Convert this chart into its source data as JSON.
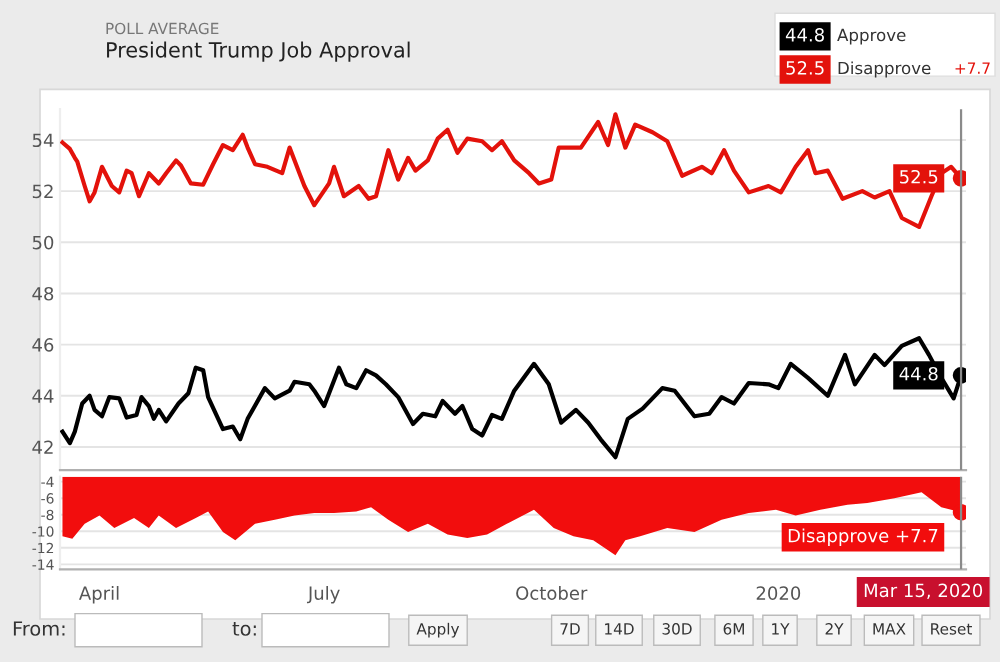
{
  "chart_data": [
    {
      "type": "line",
      "subtitle": "POLL AVERAGE",
      "title": "President Trump Job Approval",
      "legend": "top right",
      "grid": "y",
      "tick_labels": "y",
      "xlim": [
        "2019-03-16",
        "2020-03-17"
      ],
      "ylim": [
        41.1,
        55.2
      ],
      "yticks": [
        42,
        44,
        46,
        48,
        50,
        52,
        54
      ],
      "series": [
        {
          "name": "Approve",
          "color": "#000000",
          "x": [
            "2019-03-17",
            "2019-03-20",
            "2019-03-22",
            "2019-03-25",
            "2019-03-28",
            "2019-03-30",
            "2019-04-02",
            "2019-04-05",
            "2019-04-09",
            "2019-04-12",
            "2019-04-16",
            "2019-04-18",
            "2019-04-21",
            "2019-04-23",
            "2019-04-25",
            "2019-04-28",
            "2019-05-03",
            "2019-05-07",
            "2019-05-10",
            "2019-05-13",
            "2019-05-15",
            "2019-05-21",
            "2019-05-25",
            "2019-05-28",
            "2019-05-31",
            "2019-06-07",
            "2019-06-11",
            "2019-06-17",
            "2019-06-19",
            "2019-06-25",
            "2019-06-27",
            "2019-07-01",
            "2019-07-07",
            "2019-07-10",
            "2019-07-14",
            "2019-07-18",
            "2019-07-22",
            "2019-07-26",
            "2019-07-31",
            "2019-08-06",
            "2019-08-10",
            "2019-08-15",
            "2019-08-18",
            "2019-08-23",
            "2019-08-26",
            "2019-08-30",
            "2019-09-03",
            "2019-09-07",
            "2019-09-11",
            "2019-09-16",
            "2019-09-24",
            "2019-09-30",
            "2019-10-05",
            "2019-10-11",
            "2019-10-16",
            "2019-10-21",
            "2019-10-27",
            "2019-11-01",
            "2019-11-07",
            "2019-11-15",
            "2019-11-20",
            "2019-11-28",
            "2019-12-04",
            "2019-12-09",
            "2019-12-14",
            "2019-12-20",
            "2019-12-28",
            "2020-01-01",
            "2020-01-06",
            "2020-01-13",
            "2020-01-21",
            "2020-01-28",
            "2020-02-01",
            "2020-02-09",
            "2020-02-13",
            "2020-02-20",
            "2020-02-27",
            "2020-03-02",
            "2020-03-07",
            "2020-03-12",
            "2020-03-15"
          ],
          "values": [
            42.6,
            42.15,
            42.6,
            43.7,
            44.0,
            43.45,
            43.2,
            43.95,
            43.9,
            43.15,
            43.25,
            43.95,
            43.6,
            43.1,
            43.45,
            43.0,
            43.7,
            44.1,
            45.1,
            45.0,
            43.95,
            42.7,
            42.8,
            42.3,
            43.1,
            44.3,
            43.9,
            44.2,
            44.55,
            44.45,
            44.2,
            43.6,
            45.1,
            44.45,
            44.3,
            45.0,
            44.8,
            44.45,
            43.95,
            42.9,
            43.3,
            43.2,
            43.8,
            43.3,
            43.6,
            42.7,
            42.45,
            43.25,
            43.1,
            44.2,
            45.25,
            44.45,
            42.95,
            43.45,
            42.95,
            42.3,
            41.6,
            43.1,
            43.5,
            44.3,
            44.2,
            43.2,
            43.3,
            43.95,
            43.7,
            44.5,
            44.45,
            44.3,
            45.25,
            44.7,
            44.0,
            45.6,
            44.45,
            45.6,
            45.2,
            45.95,
            46.25,
            45.6,
            44.7,
            43.9,
            44.8
          ]
        },
        {
          "name": "Disapprove",
          "color": "#e3120b",
          "x": [
            "2019-03-17",
            "2019-03-20",
            "2019-03-22",
            "2019-03-23",
            "2019-03-26",
            "2019-03-28",
            "2019-03-30",
            "2019-04-02",
            "2019-04-06",
            "2019-04-09",
            "2019-04-12",
            "2019-04-14",
            "2019-04-17",
            "2019-04-21",
            "2019-04-25",
            "2019-04-28",
            "2019-05-02",
            "2019-05-04",
            "2019-05-08",
            "2019-05-13",
            "2019-05-17",
            "2019-05-21",
            "2019-05-25",
            "2019-05-29",
            "2019-05-31",
            "2019-06-03",
            "2019-06-08",
            "2019-06-14",
            "2019-06-17",
            "2019-06-21",
            "2019-06-23",
            "2019-06-27",
            "2019-07-03",
            "2019-07-05",
            "2019-07-09",
            "2019-07-15",
            "2019-07-19",
            "2019-07-22",
            "2019-07-27",
            "2019-07-31",
            "2019-08-04",
            "2019-08-07",
            "2019-08-12",
            "2019-08-16",
            "2019-08-20",
            "2019-08-24",
            "2019-08-28",
            "2019-09-03",
            "2019-09-07",
            "2019-09-11",
            "2019-09-16",
            "2019-09-22",
            "2019-09-26",
            "2019-10-01",
            "2019-10-04",
            "2019-10-13",
            "2019-10-20",
            "2019-10-24",
            "2019-10-27",
            "2019-10-31",
            "2019-11-04",
            "2019-11-11",
            "2019-11-17",
            "2019-11-23",
            "2019-12-01",
            "2019-12-05",
            "2019-12-10",
            "2019-12-14",
            "2019-12-20",
            "2019-12-28",
            "2020-01-02",
            "2020-01-08",
            "2020-01-13",
            "2020-01-16",
            "2020-01-21",
            "2020-01-27",
            "2020-02-04",
            "2020-02-09",
            "2020-02-15",
            "2020-02-20",
            "2020-02-27",
            "2020-03-03",
            "2020-03-07",
            "2020-03-11",
            "2020-03-15"
          ],
          "values": [
            53.9,
            53.65,
            53.3,
            53.15,
            52.2,
            51.6,
            51.95,
            52.95,
            52.2,
            51.95,
            52.8,
            52.7,
            51.8,
            52.7,
            52.3,
            52.7,
            53.2,
            53.0,
            52.3,
            52.25,
            53.05,
            53.8,
            53.6,
            54.2,
            53.7,
            53.05,
            52.95,
            52.7,
            53.7,
            52.7,
            52.2,
            51.45,
            52.3,
            52.95,
            51.8,
            52.2,
            51.7,
            51.8,
            53.6,
            52.45,
            53.3,
            52.8,
            53.2,
            54.05,
            54.4,
            53.5,
            54.05,
            53.95,
            53.6,
            53.95,
            53.2,
            52.7,
            52.3,
            52.45,
            53.7,
            53.7,
            54.7,
            53.8,
            55.0,
            53.7,
            54.6,
            54.3,
            53.95,
            52.6,
            52.95,
            52.7,
            53.6,
            52.8,
            51.95,
            52.2,
            51.95,
            52.95,
            53.6,
            52.7,
            52.8,
            51.7,
            52.0,
            51.75,
            52.0,
            50.95,
            50.6,
            51.8,
            52.7,
            52.95,
            52.5
          ]
        }
      ],
      "ref_lines": [
        {
          "axis": "x",
          "value": "2020-03-15"
        }
      ],
      "annotations": [
        {
          "text": "44.8",
          "x": "2020-03-15",
          "y": 44.8
        },
        {
          "text": "52.5",
          "x": "2020-03-15",
          "y": 52.5
        },
        "+7.7"
      ]
    },
    {
      "type": "area",
      "grid": "y",
      "xlim": [
        "2019-03-16",
        "2020-03-17"
      ],
      "ylim": [
        -14.6,
        -3.4
      ],
      "yticks": [
        -4,
        -6,
        -8,
        -10,
        -12,
        -14
      ],
      "xticks": [
        {
          "value": "2019-04-01",
          "label": "April"
        },
        {
          "value": "2019-07-01",
          "label": "July"
        },
        {
          "value": "2019-10-01",
          "label": "October"
        },
        {
          "value": "2020-01-01",
          "label": "2020"
        }
      ],
      "series": [
        {
          "color": "#f20d0d",
          "x": [
            "2019-03-17",
            "2019-03-21",
            "2019-03-26",
            "2019-04-01",
            "2019-04-07",
            "2019-04-15",
            "2019-04-21",
            "2019-04-25",
            "2019-05-02",
            "2019-05-10",
            "2019-05-15",
            "2019-05-21",
            "2019-05-26",
            "2019-06-03",
            "2019-06-11",
            "2019-06-19",
            "2019-06-27",
            "2019-07-05",
            "2019-07-14",
            "2019-07-20",
            "2019-07-27",
            "2019-08-04",
            "2019-08-12",
            "2019-08-20",
            "2019-08-28",
            "2019-09-05",
            "2019-09-13",
            "2019-09-24",
            "2019-10-02",
            "2019-10-10",
            "2019-10-18",
            "2019-10-27",
            "2019-10-31",
            "2019-11-06",
            "2019-11-17",
            "2019-11-28",
            "2019-12-09",
            "2019-12-20",
            "2019-12-31",
            "2020-01-08",
            "2020-01-18",
            "2020-01-29",
            "2020-02-06",
            "2020-02-17",
            "2020-02-28",
            "2020-03-07",
            "2020-03-15"
          ],
          "values": [
            -10.6,
            -10.9,
            -9.1,
            -8.1,
            -9.6,
            -8.4,
            -9.6,
            -8.1,
            -9.6,
            -8.4,
            -7.6,
            -10.1,
            -11.1,
            -9.1,
            -8.6,
            -8.1,
            -7.8,
            -7.8,
            -7.6,
            -7.1,
            -8.6,
            -10.1,
            -9.1,
            -10.4,
            -10.8,
            -10.4,
            -9.1,
            -7.4,
            -9.6,
            -10.6,
            -11.1,
            -12.9,
            -11.1,
            -10.6,
            -9.6,
            -10.1,
            -8.6,
            -7.8,
            -7.4,
            -8.1,
            -7.4,
            -6.8,
            -6.6,
            -6.0,
            -5.3,
            -7.1,
            -7.7
          ]
        }
      ],
      "ref_lines": [
        {
          "axis": "x",
          "value": "2020-03-15",
          "label": "Mar 15, 2020"
        }
      ],
      "annotations": [
        {
          "text": "Disapprove +7.7",
          "x": "2020-03-15",
          "y": -7.7
        },
        "From:",
        "to:",
        "Apply",
        "7D",
        "14D",
        "30D",
        "6M",
        "1Y",
        "2Y",
        "MAX",
        "Reset"
      ]
    }
  ]
}
